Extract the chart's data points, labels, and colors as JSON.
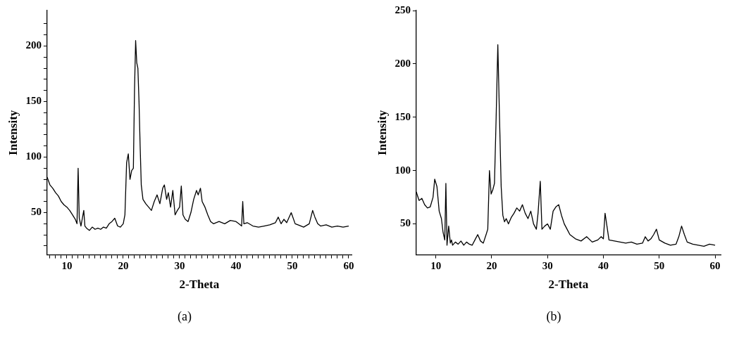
{
  "chart_data": [
    {
      "type": "line",
      "xlabel": "2-Theta",
      "ylabel": "Intensity",
      "annotations": [
        "(a)"
      ],
      "marker": "none",
      "line_style": "solid",
      "legend": false,
      "grid": false,
      "xlim": [
        6.5,
        60.5
      ],
      "ylim": [
        12,
        232
      ],
      "xticks": [
        {
          "value": 7,
          "label": null
        },
        {
          "value": 8,
          "label": null
        },
        {
          "value": 9,
          "label": null
        },
        10,
        {
          "value": 11,
          "label": null
        },
        {
          "value": 12,
          "label": null
        },
        {
          "value": 13,
          "label": null
        },
        {
          "value": 14,
          "label": null
        },
        {
          "value": 15,
          "label": null
        },
        {
          "value": 16,
          "label": null
        },
        {
          "value": 17,
          "label": null
        },
        {
          "value": 18,
          "label": null
        },
        {
          "value": 19,
          "label": null
        },
        20,
        {
          "value": 21,
          "label": null
        },
        {
          "value": 22,
          "label": null
        },
        {
          "value": 23,
          "label": null
        },
        {
          "value": 24,
          "label": null
        },
        {
          "value": 25,
          "label": null
        },
        {
          "value": 26,
          "label": null
        },
        {
          "value": 27,
          "label": null
        },
        {
          "value": 28,
          "label": null
        },
        {
          "value": 29,
          "label": null
        },
        30,
        {
          "value": 31,
          "label": null
        },
        {
          "value": 32,
          "label": null
        },
        {
          "value": 33,
          "label": null
        },
        {
          "value": 34,
          "label": null
        },
        {
          "value": 35,
          "label": null
        },
        {
          "value": 36,
          "label": null
        },
        {
          "value": 37,
          "label": null
        },
        {
          "value": 38,
          "label": null
        },
        {
          "value": 39,
          "label": null
        },
        40,
        {
          "value": 41,
          "label": null
        },
        {
          "value": 42,
          "label": null
        },
        {
          "value": 43,
          "label": null
        },
        {
          "value": 44,
          "label": null
        },
        {
          "value": 45,
          "label": null
        },
        {
          "value": 46,
          "label": null
        },
        {
          "value": 47,
          "label": null
        },
        {
          "value": 48,
          "label": null
        },
        {
          "value": 49,
          "label": null
        },
        50,
        {
          "value": 51,
          "label": null
        },
        {
          "value": 52,
          "label": null
        },
        {
          "value": 53,
          "label": null
        },
        {
          "value": 54,
          "label": null
        },
        {
          "value": 55,
          "label": null
        },
        {
          "value": 56,
          "label": null
        },
        {
          "value": 57,
          "label": null
        },
        {
          "value": 58,
          "label": null
        },
        {
          "value": 59,
          "label": null
        },
        60
      ],
      "yticks": [
        {
          "value": 20,
          "label": null
        },
        {
          "value": 30,
          "label": null
        },
        {
          "value": 40,
          "label": null
        },
        50,
        {
          "value": 60,
          "label": null
        },
        {
          "value": 70,
          "label": null
        },
        {
          "value": 80,
          "label": null
        },
        {
          "value": 90,
          "label": null
        },
        100,
        {
          "value": 110,
          "label": null
        },
        {
          "value": 120,
          "label": null
        },
        {
          "value": 130,
          "label": null
        },
        {
          "value": 140,
          "label": null
        },
        150,
        {
          "value": 160,
          "label": null
        },
        {
          "value": 170,
          "label": null
        },
        {
          "value": 180,
          "label": null
        },
        {
          "value": 190,
          "label": null
        },
        200,
        {
          "value": 210,
          "label": null
        },
        {
          "value": 220,
          "label": null
        }
      ],
      "series": [
        {
          "color": "#000000",
          "x": [
            6.5,
            7,
            7.5,
            8,
            8.5,
            9,
            9.5,
            10,
            10.5,
            11,
            11.5,
            11.8,
            12,
            12.2,
            12.5,
            13,
            13.2,
            13.5,
            14,
            14.5,
            15,
            15.5,
            16,
            16.5,
            17,
            17.5,
            18,
            18.5,
            19,
            19.5,
            20,
            20.3,
            20.6,
            20.9,
            21.2,
            21.5,
            21.8,
            22,
            22.2,
            22.4,
            22.6,
            22.8,
            23,
            23.2,
            23.5,
            24,
            24.5,
            25,
            25.5,
            26,
            26.5,
            27,
            27.3,
            27.7,
            28,
            28.4,
            28.8,
            29.2,
            29.6,
            30,
            30.3,
            30.6,
            31,
            31.5,
            32,
            32.5,
            33,
            33.3,
            33.7,
            34,
            34.5,
            35,
            35.5,
            36,
            37,
            38,
            39,
            40,
            40.5,
            41,
            41.2,
            41.4,
            42,
            43,
            44,
            45,
            46,
            47,
            47.5,
            48,
            48.5,
            49,
            49.8,
            50.5,
            51,
            52,
            53,
            53.6,
            54,
            54.5,
            55,
            56,
            57,
            58,
            59,
            60
          ],
          "values": [
            82,
            75,
            72,
            68,
            65,
            60,
            57,
            55,
            52,
            48,
            44,
            40,
            90,
            45,
            38,
            52,
            38,
            36,
            34,
            37,
            35,
            36,
            35,
            37,
            36,
            40,
            42,
            45,
            38,
            37,
            40,
            48,
            95,
            103,
            80,
            88,
            90,
            160,
            205,
            185,
            180,
            150,
            110,
            75,
            62,
            58,
            55,
            52,
            60,
            66,
            58,
            72,
            75,
            62,
            68,
            55,
            70,
            48,
            52,
            55,
            74,
            48,
            44,
            42,
            50,
            62,
            70,
            66,
            72,
            60,
            55,
            48,
            42,
            40,
            42,
            40,
            43,
            42,
            40,
            38,
            60,
            40,
            41,
            38,
            37,
            38,
            39,
            41,
            46,
            40,
            44,
            41,
            50,
            40,
            39,
            37,
            40,
            52,
            46,
            40,
            38,
            39,
            37,
            38,
            37,
            38
          ]
        }
      ]
    },
    {
      "type": "line",
      "xlabel": "2-Theta",
      "ylabel": "Intensity",
      "annotations": [
        "(b)"
      ],
      "marker": "none",
      "line_style": "solid",
      "legend": false,
      "grid": false,
      "xlim": [
        6.5,
        61
      ],
      "ylim": [
        21,
        250
      ],
      "xticks": [
        10,
        20,
        30,
        40,
        50,
        60
      ],
      "yticks": [
        50,
        100,
        150,
        200,
        250
      ],
      "series": [
        {
          "color": "#000000",
          "x": [
            6.5,
            7,
            7.5,
            8,
            8.5,
            9,
            9.5,
            9.8,
            10.2,
            10.6,
            11,
            11.3,
            11.6,
            11.8,
            12,
            12.3,
            12.6,
            12.8,
            13,
            13.5,
            14,
            14.5,
            15,
            15.5,
            16,
            16.5,
            17,
            17.5,
            18,
            18.5,
            19,
            19.3,
            19.6,
            19.9,
            20.2,
            20.5,
            20.8,
            21.1,
            21.4,
            21.7,
            22,
            22.3,
            22.6,
            23,
            23.5,
            24,
            24.5,
            25,
            25.5,
            26,
            26.5,
            27,
            27.5,
            28,
            28.3,
            28.7,
            29,
            29.5,
            30,
            30.5,
            31,
            31.5,
            32,
            32.5,
            33,
            33.5,
            34,
            35,
            36,
            37,
            38,
            39,
            39.6,
            40,
            40.3,
            41,
            42,
            43,
            44,
            45,
            46,
            47,
            47.5,
            48,
            48.5,
            49,
            49.5,
            50,
            51,
            52,
            53,
            53.5,
            54,
            54.5,
            55,
            56,
            57,
            58,
            59,
            60
          ],
          "values": [
            80,
            72,
            74,
            68,
            65,
            66,
            75,
            92,
            85,
            62,
            55,
            42,
            35,
            88,
            30,
            48,
            32,
            35,
            30,
            33,
            31,
            34,
            30,
            33,
            31,
            30,
            35,
            40,
            34,
            32,
            40,
            45,
            100,
            78,
            82,
            88,
            150,
            218,
            150,
            85,
            58,
            52,
            55,
            50,
            56,
            60,
            65,
            62,
            68,
            60,
            55,
            62,
            50,
            45,
            60,
            90,
            45,
            48,
            50,
            45,
            62,
            66,
            68,
            58,
            50,
            45,
            40,
            36,
            34,
            38,
            33,
            35,
            38,
            36,
            60,
            35,
            34,
            33,
            32,
            33,
            31,
            32,
            38,
            34,
            36,
            40,
            45,
            35,
            32,
            30,
            31,
            38,
            48,
            40,
            33,
            31,
            30,
            29,
            31,
            30
          ]
        }
      ]
    }
  ]
}
